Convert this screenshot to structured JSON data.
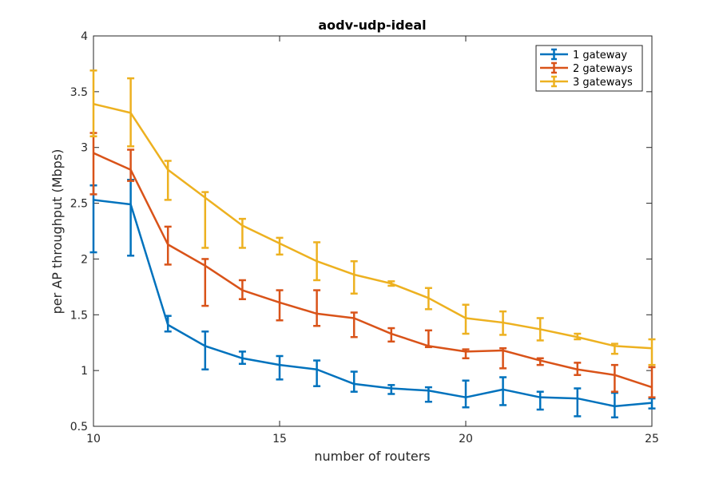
{
  "chart_data": {
    "type": "line",
    "title": "aodv-udp-ideal",
    "xlabel": "number of routers",
    "ylabel": "per AP throughput (Mbps)",
    "xlim": [
      10,
      25
    ],
    "ylim": [
      0.5,
      4
    ],
    "xticks": [
      10,
      15,
      20,
      25
    ],
    "xtick_labels": [
      "10",
      "15",
      "20",
      "25"
    ],
    "yticks": [
      0.5,
      1,
      1.5,
      2,
      2.5,
      3,
      3.5,
      4
    ],
    "ytick_labels": [
      "0.5",
      "1",
      "1.5",
      "2",
      "2.5",
      "3",
      "3.5",
      "4"
    ],
    "grid": false,
    "legend_position": "top-right",
    "x": [
      10,
      11,
      12,
      13,
      14,
      15,
      16,
      17,
      18,
      19,
      20,
      21,
      22,
      23,
      24,
      25
    ],
    "series": [
      {
        "name": "1 gateway",
        "color": "#0072BD",
        "values": [
          2.53,
          2.49,
          1.41,
          1.22,
          1.11,
          1.05,
          1.01,
          0.88,
          0.84,
          0.82,
          0.76,
          0.83,
          0.76,
          0.75,
          0.68,
          0.71
        ],
        "err_low": [
          2.06,
          2.03,
          1.35,
          1.01,
          1.06,
          0.92,
          0.86,
          0.81,
          0.79,
          0.72,
          0.67,
          0.69,
          0.65,
          0.59,
          0.58,
          0.66
        ],
        "err_high": [
          2.66,
          2.71,
          1.49,
          1.35,
          1.17,
          1.13,
          1.09,
          0.99,
          0.87,
          0.85,
          0.91,
          0.94,
          0.81,
          0.84,
          0.8,
          0.75
        ]
      },
      {
        "name": "2 gateways",
        "color": "#D95319",
        "values": [
          2.95,
          2.8,
          2.13,
          1.94,
          1.72,
          1.61,
          1.51,
          1.47,
          1.33,
          1.22,
          1.17,
          1.18,
          1.09,
          1.01,
          0.96,
          0.85
        ],
        "err_low": [
          2.58,
          2.7,
          1.95,
          1.58,
          1.64,
          1.45,
          1.4,
          1.3,
          1.26,
          1.21,
          1.11,
          1.02,
          1.05,
          0.96,
          0.81,
          0.76
        ],
        "err_high": [
          3.13,
          2.98,
          2.29,
          2.0,
          1.81,
          1.72,
          1.72,
          1.52,
          1.38,
          1.36,
          1.19,
          1.2,
          1.11,
          1.07,
          1.05,
          1.03
        ]
      },
      {
        "name": "3 gateways",
        "color": "#EDB120",
        "values": [
          3.39,
          3.31,
          2.8,
          2.55,
          2.3,
          2.14,
          1.98,
          1.86,
          1.78,
          1.65,
          1.47,
          1.43,
          1.37,
          1.3,
          1.22,
          1.2
        ],
        "err_low": [
          3.1,
          3.01,
          2.53,
          2.1,
          2.1,
          2.04,
          1.81,
          1.69,
          1.76,
          1.55,
          1.33,
          1.32,
          1.27,
          1.28,
          1.15,
          1.05
        ],
        "err_high": [
          3.69,
          3.62,
          2.88,
          2.6,
          2.36,
          2.19,
          2.15,
          1.98,
          1.8,
          1.74,
          1.59,
          1.53,
          1.47,
          1.33,
          1.24,
          1.28
        ]
      }
    ]
  }
}
